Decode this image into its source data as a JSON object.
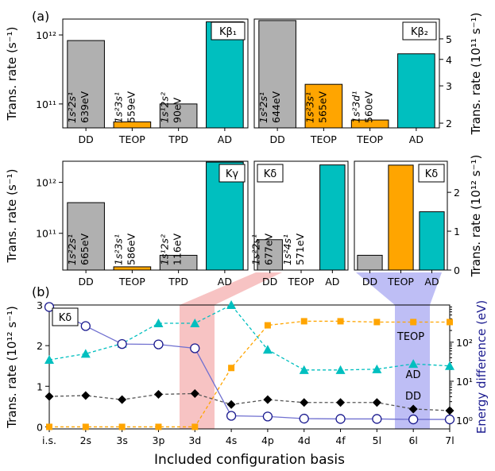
{
  "panel_labels": {
    "a": "(a)",
    "b": "(b)"
  },
  "colors": {
    "gray": "#b0b0b0",
    "orange": "#ffa500",
    "teal": "#00bfbf",
    "navy": "#1b1b8f",
    "purple": "#7070d0",
    "pink": "#f6b9b9",
    "lavender": "#b3b3f3"
  },
  "chart_data": [
    {
      "id": "kb1",
      "type": "bar",
      "yscale": "log",
      "ylim": [
        45000000000,
        1700000000000
      ],
      "ylabel": "Trans. rate (s⁻¹)",
      "tag": "Kβ₁",
      "categories": [
        "DD",
        "TEOP",
        "TPD",
        "AD"
      ],
      "values": [
        830000000000,
        55000000000,
        100000000000,
        1550000000000
      ],
      "bar_labels": [
        [
          "1s²2s¹",
          "639eV"
        ],
        [
          "1s²3s¹",
          "559eV"
        ],
        [
          "1s¹2s²",
          "90eV"
        ],
        [
          "",
          ""
        ]
      ],
      "yticks": [
        {
          "v": 100000000000,
          "label": "10¹¹"
        },
        {
          "v": 1000000000000,
          "label": "10¹²"
        }
      ]
    },
    {
      "id": "kb2",
      "type": "bar",
      "yscale": "log",
      "ylim": [
        190000000000,
        620000000000
      ],
      "ylabel": "Trans. rate (10¹¹ s⁻¹)",
      "tag": "Kβ₂",
      "categories": [
        "DD",
        "TEOP",
        "TEOP",
        "AD"
      ],
      "values": [
        610000000000,
        305000000000,
        207000000000,
        425000000000
      ],
      "bar_labels": [
        [
          "1s²2s¹",
          "644eV"
        ],
        [
          "1s²3s¹",
          "565eV"
        ],
        [
          "1s²3d¹",
          "560eV"
        ],
        [
          "",
          ""
        ]
      ],
      "yticks": [
        {
          "v": 200000000000,
          "label": "2"
        },
        {
          "v": 300000000000,
          "label": "3"
        },
        {
          "v": 400000000000,
          "label": "4"
        },
        {
          "v": 500000000000,
          "label": "5"
        }
      ]
    },
    {
      "id": "kg",
      "type": "bar",
      "yscale": "log",
      "ylim": [
        19000000000,
        2600000000000
      ],
      "ylabel": "Trans. rate (s⁻¹)",
      "tag": "Kγ",
      "categories": [
        "DD",
        "TEOP",
        "TPD",
        "AD"
      ],
      "values": [
        400000000000,
        22000000000,
        37000000000,
        2500000000000
      ],
      "bar_labels": [
        [
          "1s²2s¹",
          "665eV"
        ],
        [
          "1s²3s¹",
          "586eV"
        ],
        [
          "1s¹2s²",
          "116eV"
        ],
        [
          "",
          ""
        ]
      ],
      "yticks": [
        {
          "v": 100000000000,
          "label": "10¹¹"
        },
        {
          "v": 1000000000000,
          "label": "10¹²"
        }
      ]
    },
    {
      "id": "kd_log",
      "type": "bar",
      "yscale": "log",
      "ylim": [
        19000000000,
        2600000000000
      ],
      "tag": "Kδ",
      "categories": [
        "DD",
        "TEOP",
        "AD"
      ],
      "values": [
        75000000000,
        18000000000,
        2200000000000
      ],
      "bar_labels": [
        [
          "1s²2s¹",
          "677eV"
        ],
        [
          "1s²4s¹",
          "571eV"
        ],
        [
          "",
          ""
        ]
      ]
    },
    {
      "id": "kd_lin",
      "type": "bar",
      "yscale": "linear",
      "ylim": [
        0,
        2.8
      ],
      "ylabel": "Trans. rate (10¹² s⁻¹)",
      "tag": "Kδ",
      "categories": [
        "DD",
        "TEOP",
        "AD"
      ],
      "values": [
        0.38,
        2.7,
        1.5
      ],
      "yticks": [
        {
          "v": 0,
          "label": "0"
        },
        {
          "v": 1,
          "label": "1"
        },
        {
          "v": 2,
          "label": "2"
        }
      ]
    },
    {
      "id": "conv",
      "type": "line",
      "tag": "Kδ",
      "title": "",
      "xlabel": "Included configuration basis",
      "x": [
        "i.s.",
        "2s",
        "3s",
        "3p",
        "3d",
        "4s",
        "4p",
        "4d",
        "4f",
        "5l",
        "6l",
        "7l"
      ],
      "ylabel": "Trans. rate (10¹² s⁻¹)",
      "ylim": [
        -0.05,
        3.0
      ],
      "yticks": [
        {
          "v": 0,
          "label": "0"
        },
        {
          "v": 1,
          "label": "1"
        },
        {
          "v": 2,
          "label": "2"
        },
        {
          "v": 3,
          "label": "3"
        }
      ],
      "y2label": "Energy difference (eV)",
      "y2scale": "log",
      "y2lim": [
        0.6,
        900
      ],
      "y2ticks": [
        {
          "v": 1,
          "label": "10⁰"
        },
        {
          "v": 10,
          "label": "10¹"
        },
        {
          "v": 100,
          "label": "10²"
        }
      ],
      "series": [
        {
          "name": "TEOP",
          "axis": "left",
          "marker": "square",
          "values": [
            0,
            0,
            0,
            0,
            0,
            1.45,
            2.5,
            2.6,
            2.6,
            2.58,
            2.58,
            2.58
          ]
        },
        {
          "name": "AD",
          "axis": "left",
          "marker": "triangle",
          "values": [
            1.65,
            1.8,
            2.05,
            2.55,
            2.55,
            3.0,
            1.9,
            1.4,
            1.4,
            1.42,
            1.55,
            1.5
          ]
        },
        {
          "name": "DD",
          "axis": "left",
          "marker": "diamond",
          "values": [
            0.75,
            0.77,
            0.67,
            0.8,
            0.82,
            0.55,
            0.67,
            0.6,
            0.6,
            0.6,
            0.44,
            0.4
          ]
        },
        {
          "name": "Energy difference",
          "axis": "right",
          "marker": "circle",
          "values": [
            800,
            260,
            90,
            88,
            70,
            1.3,
            1.25,
            1.1,
            1.08,
            1.08,
            1.05,
            1.05
          ]
        }
      ],
      "series_labels": [
        "TEOP",
        "AD",
        "DD"
      ],
      "highlights": [
        {
          "from": "3d",
          "color": "pink"
        },
        {
          "from": "6l",
          "color": "lavender"
        }
      ]
    }
  ]
}
